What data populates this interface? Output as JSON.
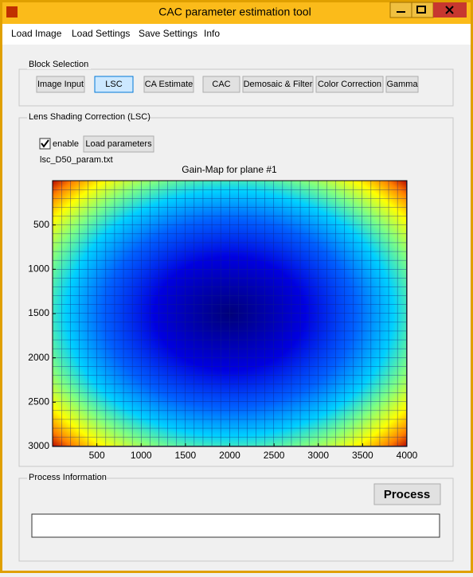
{
  "window": {
    "title": "CAC parameter estimation tool"
  },
  "menu": [
    "Load Image",
    "Load Settings",
    "Save Settings",
    "Info"
  ],
  "block_selection": {
    "label": "Block Selection",
    "buttons": [
      "Image Input",
      "LSC",
      "CA Estimate",
      "CAC",
      "Demosaic & Filter",
      "Color Correction",
      "Gamma"
    ],
    "selected": 1
  },
  "lsc": {
    "label": "Lens Shading Correction (LSC)",
    "checkbox": "enable",
    "checked": true,
    "load_button": "Load parameters",
    "file": "lsc_D50_param.txt"
  },
  "plot": {
    "title": "Gain-Map for plane #1",
    "xlim": [
      0,
      4000
    ],
    "ylim": [
      0,
      3000
    ],
    "y_reversed": true,
    "xticks": [
      500,
      1000,
      1500,
      2000,
      2500,
      3000,
      3500,
      4000
    ],
    "yticks": [
      500,
      1000,
      1500,
      2000,
      2500,
      3000
    ]
  },
  "process": {
    "label": "Process Information",
    "button": "Process"
  }
}
